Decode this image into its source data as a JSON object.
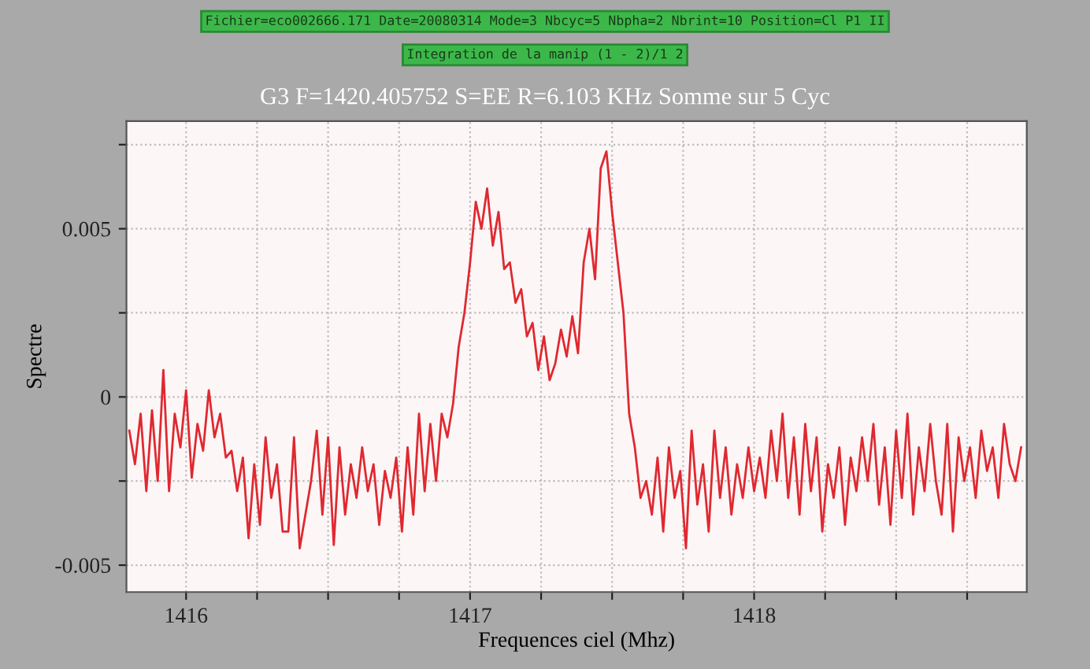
{
  "chart_data": {
    "type": "line",
    "title": "G3 F=1420.405752 S=EE R=6.103 KHz Somme sur 5 Cyc",
    "annotations": [
      "Fichier=eco002666.171 Date=20080314 Mode=3 Nbcyc=5 Nbpha=2 Nbrint=10 Position=Cl P1 II",
      "Integration de la manip (1 - 2)/1 2"
    ],
    "xlabel": "Frequences ciel (Mhz)",
    "ylabel": "Spectre",
    "xlim": [
      1415.79,
      1418.96
    ],
    "ylim": [
      -0.0058,
      0.0082
    ],
    "xticks": [
      1416,
      {
        "value": 1416.25,
        "label": null
      },
      {
        "value": 1416.5,
        "label": null
      },
      {
        "value": 1416.75,
        "label": null
      },
      1417,
      {
        "value": 1417.25,
        "label": null
      },
      {
        "value": 1417.5,
        "label": null
      },
      {
        "value": 1417.75,
        "label": null
      },
      1418,
      {
        "value": 1418.25,
        "label": null
      },
      {
        "value": 1418.5,
        "label": null
      },
      {
        "value": 1418.75,
        "label": null
      }
    ],
    "yticks": [
      -0.005,
      {
        "value": -0.0025,
        "label": null
      },
      0,
      {
        "value": 0.0025,
        "label": null
      },
      0.005,
      {
        "value": 0.0075,
        "label": null
      }
    ],
    "grid": true,
    "marker": "none",
    "line_style": "solid",
    "series": [
      {
        "color": "#e02830",
        "x": [
          1415.8,
          1415.82,
          1415.84,
          1415.86,
          1415.88,
          1415.9,
          1415.92,
          1415.94,
          1415.96,
          1415.98,
          1416.0,
          1416.02,
          1416.04,
          1416.06,
          1416.08,
          1416.1,
          1416.12,
          1416.14,
          1416.16,
          1416.18,
          1416.2,
          1416.22,
          1416.24,
          1416.26,
          1416.28,
          1416.3,
          1416.32,
          1416.34,
          1416.36,
          1416.38,
          1416.4,
          1416.42,
          1416.44,
          1416.46,
          1416.48,
          1416.5,
          1416.52,
          1416.54,
          1416.56,
          1416.58,
          1416.6,
          1416.62,
          1416.64,
          1416.66,
          1416.68,
          1416.7,
          1416.72,
          1416.74,
          1416.76,
          1416.78,
          1416.8,
          1416.82,
          1416.84,
          1416.86,
          1416.88,
          1416.9,
          1416.92,
          1416.94,
          1416.96,
          1416.98,
          1417.0,
          1417.02,
          1417.04,
          1417.06,
          1417.08,
          1417.1,
          1417.12,
          1417.14,
          1417.16,
          1417.18,
          1417.2,
          1417.22,
          1417.24,
          1417.26,
          1417.28,
          1417.3,
          1417.32,
          1417.34,
          1417.36,
          1417.38,
          1417.4,
          1417.42,
          1417.44,
          1417.46,
          1417.48,
          1417.5,
          1417.52,
          1417.54,
          1417.56,
          1417.58,
          1417.6,
          1417.62,
          1417.64,
          1417.66,
          1417.68,
          1417.7,
          1417.72,
          1417.74,
          1417.76,
          1417.78,
          1417.8,
          1417.82,
          1417.84,
          1417.86,
          1417.88,
          1417.9,
          1417.92,
          1417.94,
          1417.96,
          1417.98,
          1418.0,
          1418.02,
          1418.04,
          1418.06,
          1418.08,
          1418.1,
          1418.12,
          1418.14,
          1418.16,
          1418.18,
          1418.2,
          1418.22,
          1418.24,
          1418.26,
          1418.28,
          1418.3,
          1418.32,
          1418.34,
          1418.36,
          1418.38,
          1418.4,
          1418.42,
          1418.44,
          1418.46,
          1418.48,
          1418.5,
          1418.52,
          1418.54,
          1418.56,
          1418.58,
          1418.6,
          1418.62,
          1418.64,
          1418.66,
          1418.68,
          1418.7,
          1418.72,
          1418.74,
          1418.76,
          1418.78,
          1418.8,
          1418.82,
          1418.84,
          1418.86,
          1418.88,
          1418.9,
          1418.92,
          1418.94
        ],
        "values": [
          -0.001,
          -0.002,
          -0.0005,
          -0.0028,
          -0.0004,
          -0.0025,
          0.0008,
          -0.0028,
          -0.0005,
          -0.0015,
          0.0002,
          -0.0024,
          -0.0008,
          -0.0016,
          0.0002,
          -0.0012,
          -0.0005,
          -0.0018,
          -0.0016,
          -0.0028,
          -0.0018,
          -0.0042,
          -0.002,
          -0.0038,
          -0.0012,
          -0.003,
          -0.002,
          -0.004,
          -0.004,
          -0.0012,
          -0.0045,
          -0.0035,
          -0.0025,
          -0.001,
          -0.0035,
          -0.0012,
          -0.0044,
          -0.0015,
          -0.0035,
          -0.002,
          -0.003,
          -0.0015,
          -0.0028,
          -0.002,
          -0.0038,
          -0.0022,
          -0.003,
          -0.0018,
          -0.004,
          -0.0015,
          -0.0035,
          -0.0005,
          -0.0028,
          -0.0008,
          -0.0025,
          -0.0005,
          -0.0012,
          -0.0002,
          0.0015,
          0.0025,
          0.004,
          0.0058,
          0.005,
          0.0062,
          0.0045,
          0.0055,
          0.0038,
          0.004,
          0.0028,
          0.0032,
          0.0018,
          0.0022,
          0.0008,
          0.0018,
          0.0005,
          0.001,
          0.002,
          0.0012,
          0.0024,
          0.0013,
          0.004,
          0.005,
          0.0035,
          0.0068,
          0.0073,
          0.0055,
          0.004,
          0.0025,
          -0.0005,
          -0.0015,
          -0.003,
          -0.0025,
          -0.0035,
          -0.0018,
          -0.004,
          -0.0015,
          -0.003,
          -0.0022,
          -0.0045,
          -0.001,
          -0.0032,
          -0.002,
          -0.004,
          -0.001,
          -0.003,
          -0.0015,
          -0.0035,
          -0.002,
          -0.003,
          -0.0015,
          -0.0028,
          -0.0018,
          -0.003,
          -0.001,
          -0.0025,
          -0.0005,
          -0.003,
          -0.0012,
          -0.0035,
          -0.0008,
          -0.0028,
          -0.0012,
          -0.004,
          -0.002,
          -0.003,
          -0.0015,
          -0.0038,
          -0.0018,
          -0.0028,
          -0.0012,
          -0.0025,
          -0.0008,
          -0.0032,
          -0.0015,
          -0.0038,
          -0.001,
          -0.003,
          -0.0005,
          -0.0035,
          -0.0015,
          -0.0028,
          -0.0008,
          -0.0025,
          -0.0035,
          -0.0008,
          -0.004,
          -0.0012,
          -0.0025,
          -0.0015,
          -0.003,
          -0.001,
          -0.0022,
          -0.0015,
          -0.003,
          -0.0008,
          -0.002,
          -0.0025,
          -0.0015
        ]
      }
    ]
  }
}
